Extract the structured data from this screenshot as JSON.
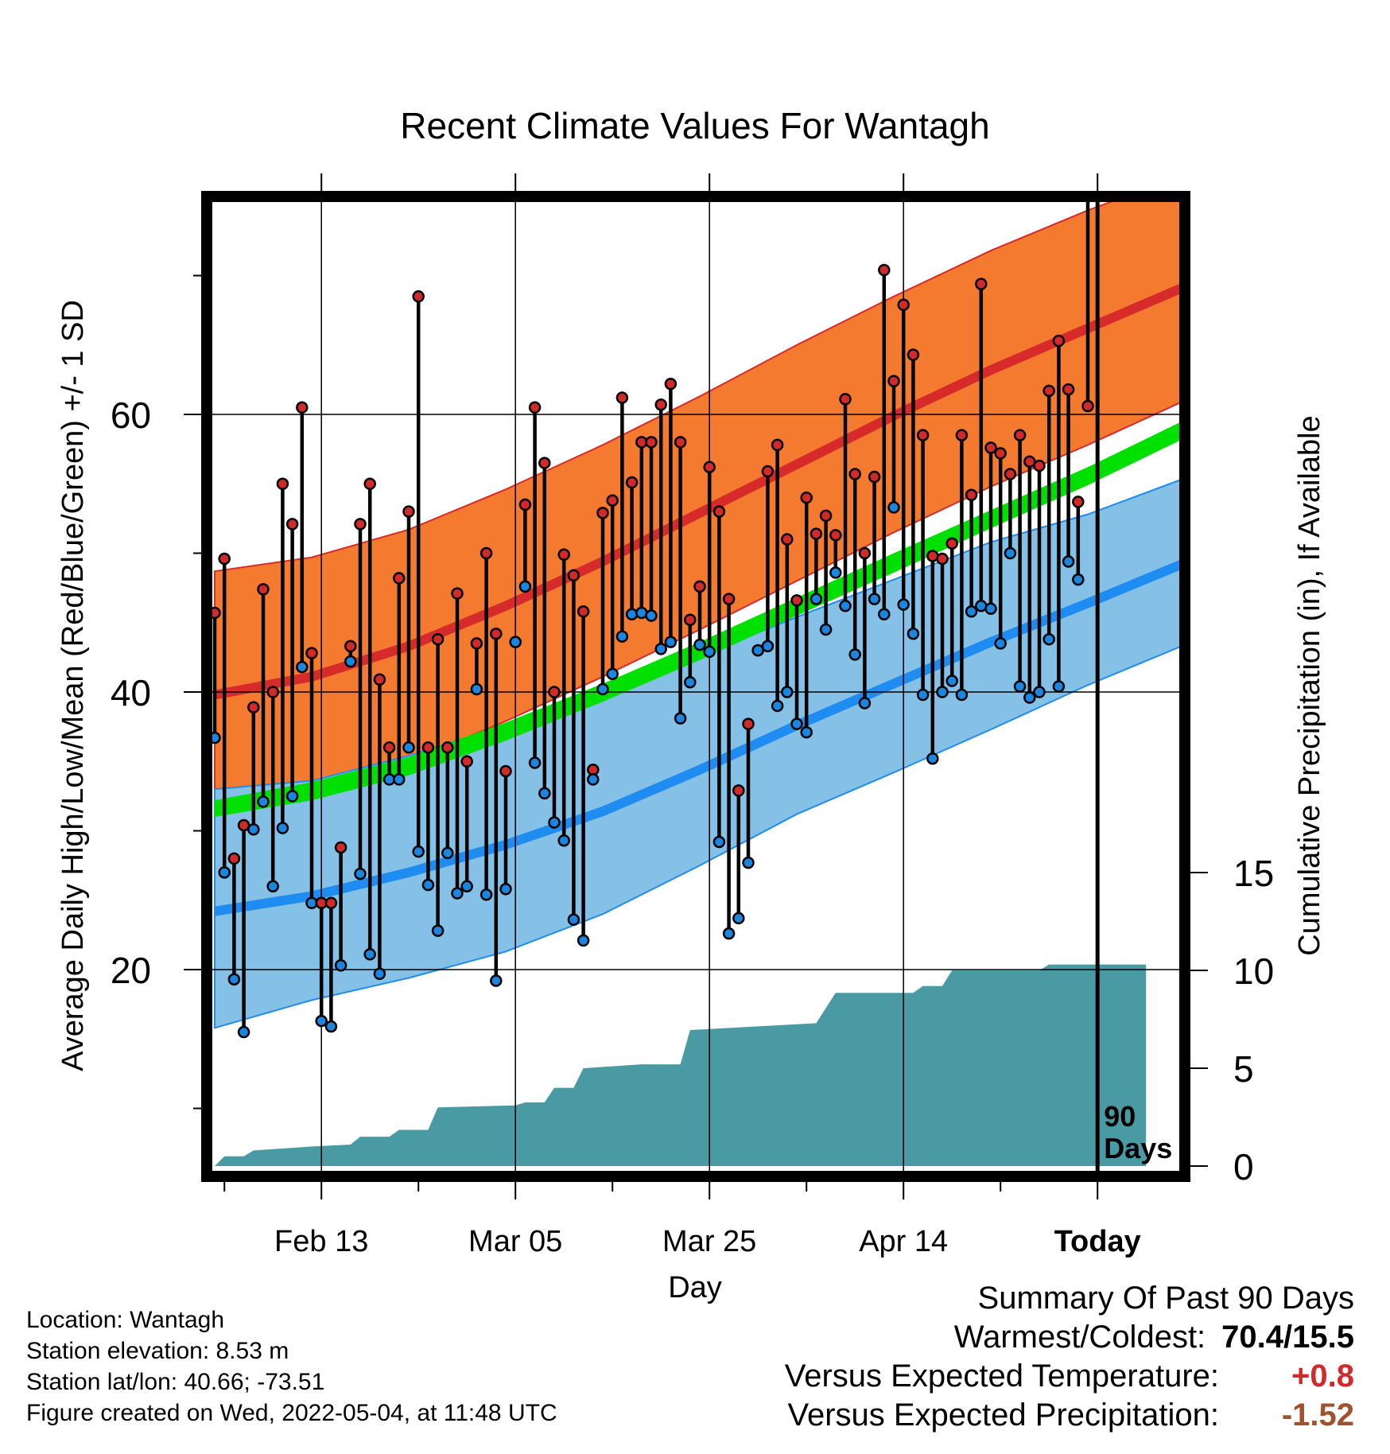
{
  "chart_data": {
    "type": "line",
    "title": "Recent Climate Values For Wantagh",
    "xlabel": "Day",
    "ylabel": "Average Daily High/Low/Mean (Red/Blue/Green) +/- 1 SD",
    "y2label": "Cumulative Precipitation (in), If Available",
    "ylim": [
      6,
      75
    ],
    "y2lim": [
      0,
      30
    ],
    "yticks": [
      20,
      40,
      60
    ],
    "y2ticks": [
      0,
      5,
      10,
      15
    ],
    "xticks": [
      {
        "day": 11,
        "label": "Feb 13"
      },
      {
        "day": 31,
        "label": "Mar 05"
      },
      {
        "day": 51,
        "label": "Mar 25"
      },
      {
        "day": 71,
        "label": "Apr 14"
      },
      {
        "day": 91,
        "label": "Today"
      }
    ],
    "today_marker": {
      "day": 91,
      "label_line1": "90",
      "label_line2": "Days"
    },
    "colors": {
      "high_band": "#f47a30",
      "high_mean": "#d72a2a",
      "low_band": "#85c0e6",
      "low_mean": "#1e8cf0",
      "mean_band": "#00e000",
      "precip": "#4a9aa3",
      "high_marker": "#d22a2a",
      "low_marker": "#1a86e0"
    },
    "normals": {
      "days": [
        0,
        10,
        20,
        30,
        40,
        50,
        60,
        70,
        80,
        90,
        100
      ],
      "high_upper": [
        48.7,
        49.7,
        51.7,
        54.6,
        57.8,
        61.3,
        65.0,
        68.5,
        71.8,
        74.7,
        77.3
      ],
      "high_mean": [
        39.8,
        41.1,
        43.3,
        46.2,
        49.4,
        52.9,
        56.4,
        59.9,
        63.2,
        66.2,
        69.2
      ],
      "high_lower": [
        30.8,
        32.5,
        35.0,
        37.9,
        41.1,
        44.5,
        48.0,
        51.5,
        54.8,
        57.8,
        61.0
      ],
      "mean_upper": [
        32.2,
        33.5,
        35.3,
        37.8,
        40.6,
        43.6,
        46.8,
        50.0,
        53.1,
        56.2,
        59.6
      ],
      "mean_lower": [
        31.0,
        32.2,
        34.0,
        36.5,
        39.3,
        42.3,
        45.5,
        48.6,
        51.8,
        54.9,
        58.3
      ],
      "low_upper": [
        33.0,
        33.6,
        35.4,
        37.6,
        39.9,
        42.6,
        45.4,
        48.1,
        50.8,
        52.8,
        55.4
      ],
      "low_mean": [
        24.2,
        25.3,
        27.0,
        29.0,
        31.4,
        34.4,
        37.6,
        40.6,
        43.6,
        46.4,
        49.3
      ],
      "low_lower": [
        15.8,
        17.8,
        19.4,
        21.3,
        24.0,
        27.5,
        31.2,
        34.2,
        37.3,
        40.5,
        43.4
      ]
    },
    "series": [
      {
        "name": "High",
        "values": [
          45.7,
          49.6,
          28.0,
          30.4,
          38.9,
          47.4,
          40.0,
          55.0,
          52.1,
          60.5,
          42.8,
          24.8,
          24.8,
          28.8,
          43.3,
          52.1,
          55.0,
          40.9,
          36.0,
          48.2,
          53.0,
          68.5,
          36.0,
          43.8,
          36.0,
          47.1,
          35.0,
          43.5,
          50.0,
          44.2,
          34.3,
          43.6,
          53.5,
          60.5,
          56.5,
          40.0,
          49.9,
          48.4,
          45.8,
          34.4,
          52.9,
          53.8,
          61.2,
          55.1,
          58.0,
          58.0,
          60.7,
          62.2,
          58.0,
          45.2,
          47.6,
          56.2,
          53.0,
          46.7,
          32.9,
          37.7,
          43.0,
          55.9,
          57.8,
          51.0,
          46.6,
          54.0,
          51.4,
          52.7,
          51.3,
          61.1,
          55.7,
          50.0,
          55.5,
          70.4,
          62.4,
          67.9,
          64.3,
          58.5,
          49.8,
          49.6,
          50.7,
          58.5,
          54.2,
          69.4,
          57.6,
          57.2,
          55.7,
          58.5,
          56.6,
          56.3,
          61.7,
          65.3,
          61.8,
          53.7,
          60.6
        ]
      },
      {
        "name": "Low",
        "values": [
          36.7,
          27.0,
          19.3,
          15.5,
          30.1,
          32.1,
          26.0,
          30.2,
          32.5,
          41.8,
          24.8,
          16.3,
          15.9,
          20.3,
          42.2,
          26.9,
          21.1,
          19.7,
          33.7,
          33.7,
          36.0,
          28.5,
          26.1,
          22.8,
          28.4,
          25.5,
          26.0,
          40.2,
          25.4,
          19.2,
          25.8,
          43.6,
          47.6,
          34.9,
          32.7,
          30.6,
          29.3,
          23.6,
          22.1,
          33.7,
          40.2,
          41.3,
          44.0,
          45.6,
          45.7,
          45.5,
          43.1,
          43.6,
          38.1,
          40.7,
          43.4,
          42.9,
          29.2,
          22.6,
          23.7,
          27.7,
          43.0,
          43.3,
          39.0,
          40.0,
          37.7,
          37.1,
          46.7,
          44.5,
          48.6,
          46.2,
          42.7,
          39.2,
          46.7,
          45.6,
          53.3,
          46.3,
          44.2,
          39.8,
          35.2,
          40.0,
          40.8,
          39.8,
          45.8,
          46.2,
          46.0,
          43.5,
          50.0,
          40.4,
          39.6,
          40.0,
          43.8,
          40.4,
          49.4,
          48.1
        ]
      },
      {
        "name": "Precipitation",
        "days": [
          0,
          1,
          3,
          4,
          10,
          14,
          15,
          18,
          19,
          22,
          23,
          31,
          32,
          34,
          35,
          37,
          38,
          44,
          48,
          49,
          62,
          64,
          72,
          73,
          75,
          76,
          85,
          86,
          96
        ],
        "values": [
          0.0,
          0.5,
          0.5,
          0.8,
          1.0,
          1.1,
          1.5,
          1.5,
          1.85,
          1.85,
          3.0,
          3.1,
          3.25,
          3.25,
          4.0,
          4.0,
          5.0,
          5.2,
          5.2,
          6.95,
          7.3,
          8.85,
          8.85,
          9.2,
          9.2,
          10.0,
          10.0,
          10.3,
          10.3
        ]
      }
    ]
  },
  "footer": {
    "location": "Location: Wantagh",
    "elevation": "Station elevation: 8.53 m",
    "latlon": "Station lat/lon: 40.66; -73.51",
    "created": "Figure created on Wed, 2022-05-04, at 11:48 UTC"
  },
  "summary": {
    "heading": "Summary Of Past 90 Days",
    "warm_cold_label": "Warmest/Coldest:",
    "warm_cold_value": "70.4/15.5",
    "temp_label": "Versus Expected Temperature:",
    "temp_value": "+0.8",
    "temp_color": "#d22a2a",
    "precip_label": "Versus Expected Precipitation:",
    "precip_value": "-1.52",
    "precip_color": "#a0522d"
  }
}
